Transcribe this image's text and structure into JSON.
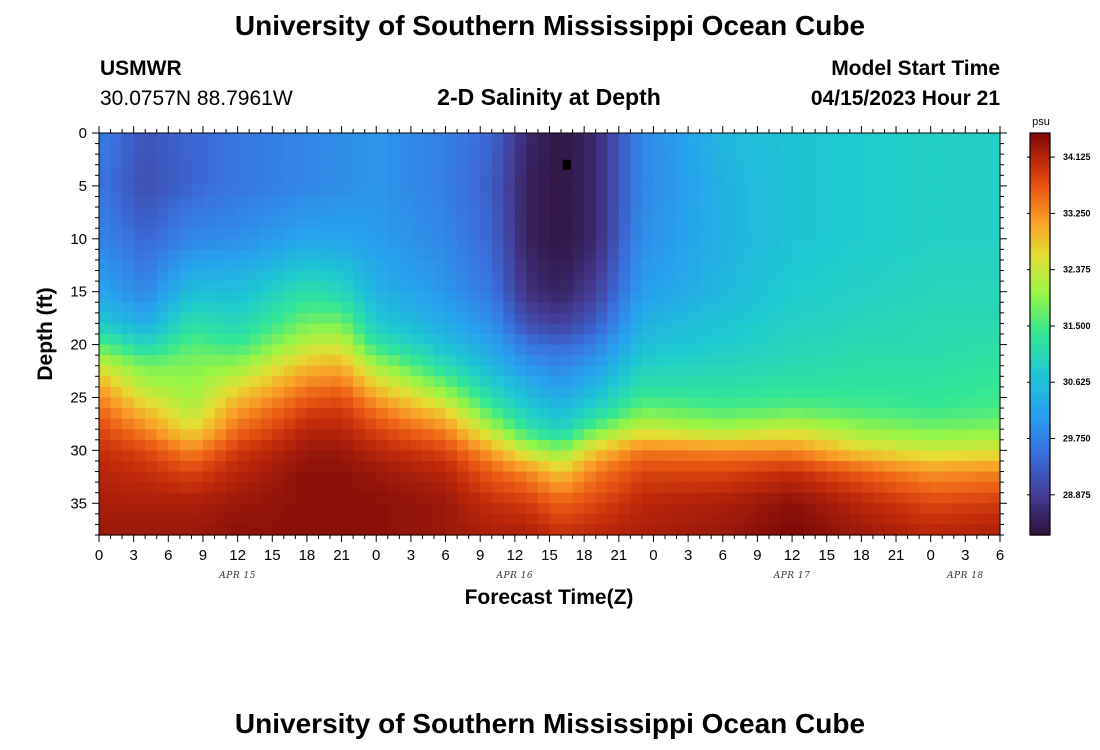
{
  "header": {
    "title": "University of Southern Mississippi Ocean Cube",
    "station_id": "USMWR",
    "coordinates": "30.0757N  88.7961W",
    "plot_title": "2-D Salinity at Depth",
    "model_start_label": "Model Start Time",
    "model_start_value": "04/15/2023 Hour 21"
  },
  "footer": {
    "repeated_title": "University of Southern Mississippi Ocean Cube"
  },
  "chart_data": {
    "type": "heatmap",
    "title": "2-D Salinity at Depth",
    "xlabel": "Forecast Time(Z)",
    "ylabel": "Depth (ft)",
    "x_tick_labels": [
      "0",
      "3",
      "6",
      "9",
      "12",
      "15",
      "18",
      "21",
      "0",
      "3",
      "6",
      "9",
      "12",
      "15",
      "18",
      "21",
      "0",
      "3",
      "6",
      "9",
      "12",
      "15",
      "18",
      "21",
      "0",
      "3",
      "6"
    ],
    "x_range_hours": [
      0,
      78
    ],
    "date_labels": [
      {
        "label": "APR 15",
        "hour": 12
      },
      {
        "label": "APR 16",
        "hour": 36
      },
      {
        "label": "APR 17",
        "hour": 60
      },
      {
        "label": "APR 18",
        "hour": 75
      }
    ],
    "y_ticks": [
      0,
      5,
      10,
      15,
      20,
      25,
      30,
      35
    ],
    "y_range_ft": [
      0,
      38
    ],
    "y_inverted": true,
    "colorbar": {
      "unit": "psu",
      "range": [
        28.25,
        34.5
      ],
      "ticks": [
        "34.125",
        "33.250",
        "32.375",
        "31.500",
        "30.625",
        "29.750",
        "28.875"
      ],
      "colormap": "turbo"
    },
    "marker": {
      "hour": 40.5,
      "depth_ft": 3,
      "color": "#000000"
    },
    "depth_profile_columns_ft": [
      0,
      5,
      10,
      15,
      18,
      20,
      22,
      24,
      26,
      28,
      30,
      32,
      35,
      38
    ],
    "profiles": [
      {
        "hour": 0,
        "salinity": [
          29.7,
          29.6,
          29.8,
          30.2,
          30.8,
          31.6,
          32.4,
          33.1,
          33.5,
          33.8,
          34.0,
          34.1,
          34.2,
          34.3
        ]
      },
      {
        "hour": 4,
        "salinity": [
          29.2,
          29.1,
          29.4,
          29.8,
          30.3,
          31.0,
          31.8,
          32.2,
          32.8,
          33.3,
          33.8,
          34.0,
          34.2,
          34.3
        ]
      },
      {
        "hour": 8,
        "salinity": [
          29.4,
          29.4,
          29.8,
          30.6,
          31.2,
          31.6,
          31.9,
          32.0,
          32.2,
          32.6,
          33.3,
          33.8,
          34.2,
          34.3
        ]
      },
      {
        "hour": 12,
        "salinity": [
          29.6,
          29.6,
          29.9,
          30.6,
          31.0,
          31.4,
          32.0,
          32.6,
          33.1,
          33.5,
          33.9,
          34.1,
          34.3,
          34.4
        ]
      },
      {
        "hour": 18,
        "salinity": [
          29.8,
          29.8,
          30.2,
          31.2,
          31.8,
          32.3,
          32.9,
          33.4,
          33.8,
          34.1,
          34.3,
          34.4,
          34.4,
          34.4
        ]
      },
      {
        "hour": 21,
        "salinity": [
          29.9,
          29.9,
          30.2,
          31.0,
          31.8,
          32.4,
          33.0,
          33.5,
          33.9,
          34.1,
          34.3,
          34.4,
          34.4,
          34.4
        ]
      },
      {
        "hour": 24,
        "salinity": [
          30.0,
          30.0,
          30.1,
          30.4,
          30.8,
          31.3,
          32.1,
          32.8,
          33.4,
          33.8,
          34.1,
          34.3,
          34.4,
          34.4
        ]
      },
      {
        "hour": 30,
        "salinity": [
          29.7,
          29.7,
          29.8,
          30.0,
          30.3,
          30.6,
          31.1,
          31.8,
          32.6,
          33.3,
          33.8,
          34.1,
          34.3,
          34.3
        ]
      },
      {
        "hour": 34,
        "salinity": [
          29.4,
          29.3,
          29.4,
          29.6,
          29.9,
          30.2,
          30.5,
          30.9,
          31.4,
          32.2,
          33.1,
          33.6,
          34.0,
          34.2
        ]
      },
      {
        "hour": 37,
        "salinity": [
          28.6,
          28.5,
          28.5,
          28.7,
          29.1,
          29.6,
          30.0,
          30.4,
          30.8,
          31.3,
          32.3,
          33.3,
          33.9,
          34.2
        ]
      },
      {
        "hour": 40,
        "salinity": [
          28.3,
          28.3,
          28.3,
          28.5,
          28.9,
          29.4,
          29.8,
          30.1,
          30.5,
          30.9,
          31.9,
          32.8,
          33.6,
          34.0
        ]
      },
      {
        "hour": 43,
        "salinity": [
          28.6,
          28.6,
          28.6,
          28.9,
          29.3,
          29.7,
          30.1,
          30.5,
          30.9,
          31.7,
          32.8,
          33.4,
          33.8,
          34.1
        ]
      },
      {
        "hour": 47,
        "salinity": [
          29.8,
          29.8,
          29.9,
          30.1,
          30.4,
          30.6,
          30.9,
          31.2,
          31.7,
          32.4,
          33.4,
          33.8,
          34.1,
          34.2
        ]
      },
      {
        "hour": 54,
        "salinity": [
          30.5,
          30.4,
          30.4,
          30.5,
          30.7,
          30.8,
          31.0,
          31.2,
          31.5,
          32.1,
          33.3,
          33.8,
          34.2,
          34.3
        ]
      },
      {
        "hour": 60,
        "salinity": [
          30.7,
          30.7,
          30.7,
          30.8,
          30.9,
          31.0,
          31.1,
          31.3,
          31.6,
          32.4,
          33.3,
          34.0,
          34.4,
          34.5
        ]
      },
      {
        "hour": 66,
        "salinity": [
          30.8,
          30.8,
          30.8,
          30.9,
          31.0,
          31.1,
          31.2,
          31.3,
          31.5,
          32.0,
          32.7,
          33.6,
          34.1,
          34.3
        ]
      },
      {
        "hour": 72,
        "salinity": [
          30.9,
          30.9,
          30.9,
          31.0,
          31.1,
          31.1,
          31.2,
          31.3,
          31.4,
          31.8,
          32.4,
          33.2,
          33.8,
          34.1
        ]
      },
      {
        "hour": 78,
        "salinity": [
          30.9,
          30.9,
          30.9,
          31.0,
          31.1,
          31.2,
          31.3,
          31.4,
          31.5,
          31.9,
          32.5,
          33.3,
          33.9,
          34.2
        ]
      }
    ]
  }
}
